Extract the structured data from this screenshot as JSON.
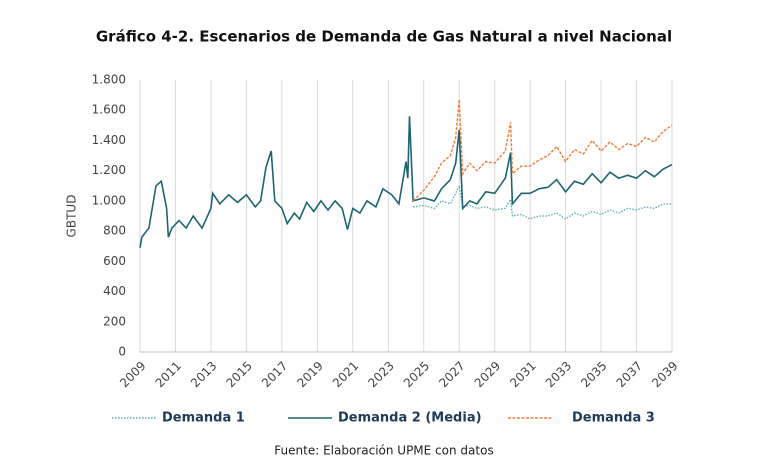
{
  "chart_data": {
    "type": "line",
    "title": "Gráfico 4-2. Escenarios de Demanda de Gas Natural a nivel Nacional",
    "y_label": "GBTUD",
    "source": "Fuente: Elaboración UPME con datos",
    "x": [
      2009.0,
      2009.1,
      2009.5,
      2009.9,
      2010.2,
      2010.5,
      2010.6,
      2010.8,
      2011.2,
      2011.6,
      2012.0,
      2012.5,
      2013.0,
      2013.1,
      2013.5,
      2014.0,
      2014.5,
      2015.0,
      2015.5,
      2015.8,
      2016.1,
      2016.4,
      2016.6,
      2017.0,
      2017.3,
      2017.7,
      2018.0,
      2018.4,
      2018.8,
      2019.2,
      2019.6,
      2020.0,
      2020.4,
      2020.7,
      2021.0,
      2021.4,
      2021.8,
      2022.3,
      2022.7,
      2023.2,
      2023.6,
      2024.0,
      2024.1,
      2024.2,
      2024.4,
      2025.0,
      2025.6,
      2026.0,
      2026.5,
      2026.8,
      2027.0,
      2027.2,
      2027.6,
      2028.0,
      2028.5,
      2029.0,
      2029.6,
      2029.9,
      2030.0,
      2030.5,
      2031.0,
      2031.5,
      2032.0,
      2032.5,
      2033.0,
      2033.5,
      2034.0,
      2034.5,
      2035.0,
      2035.5,
      2036.0,
      2036.5,
      2037.0,
      2037.5,
      2038.0,
      2038.5,
      2039.0
    ],
    "series": [
      {
        "name": "Demanda 1",
        "color": "#5fb0b0",
        "dash": "dotted",
        "values": [
          null,
          null,
          null,
          null,
          null,
          null,
          null,
          null,
          null,
          null,
          null,
          null,
          null,
          null,
          null,
          null,
          null,
          null,
          null,
          null,
          null,
          null,
          null,
          null,
          null,
          null,
          null,
          null,
          null,
          null,
          null,
          null,
          null,
          null,
          null,
          null,
          null,
          null,
          null,
          null,
          null,
          null,
          null,
          null,
          960,
          970,
          950,
          1000,
          980,
          1050,
          1100,
          960,
          970,
          950,
          960,
          940,
          950,
          1010,
          900,
          910,
          880,
          900,
          900,
          920,
          880,
          920,
          900,
          930,
          910,
          940,
          920,
          950,
          940,
          960,
          950,
          980,
          980
        ]
      },
      {
        "name": "Demanda 2 (Media)",
        "color": "#1f6472",
        "dash": "solid",
        "values": [
          690,
          760,
          820,
          1100,
          1130,
          950,
          760,
          820,
          870,
          820,
          900,
          820,
          950,
          1050,
          980,
          1040,
          990,
          1040,
          960,
          1000,
          1220,
          1330,
          1000,
          950,
          850,
          920,
          880,
          990,
          930,
          1000,
          940,
          1000,
          950,
          810,
          950,
          920,
          1000,
          960,
          1080,
          1040,
          980,
          1260,
          1150,
          1560,
          1000,
          1020,
          1000,
          1080,
          1140,
          1250,
          1470,
          950,
          1000,
          980,
          1060,
          1050,
          1150,
          1320,
          980,
          1050,
          1050,
          1080,
          1090,
          1140,
          1060,
          1130,
          1110,
          1180,
          1120,
          1190,
          1150,
          1170,
          1150,
          1200,
          1160,
          1210,
          1240
        ]
      },
      {
        "name": "Demanda 3",
        "color": "#f07c3c",
        "dash": "dashed",
        "values": [
          null,
          null,
          null,
          null,
          null,
          null,
          null,
          null,
          null,
          null,
          null,
          null,
          null,
          null,
          null,
          null,
          null,
          null,
          null,
          null,
          null,
          null,
          null,
          null,
          null,
          null,
          null,
          null,
          null,
          null,
          null,
          null,
          null,
          null,
          null,
          null,
          null,
          null,
          null,
          null,
          null,
          null,
          null,
          null,
          1000,
          1070,
          1160,
          1250,
          1300,
          1420,
          1670,
          1180,
          1250,
          1200,
          1260,
          1250,
          1330,
          1520,
          1180,
          1230,
          1230,
          1270,
          1300,
          1360,
          1260,
          1340,
          1310,
          1400,
          1330,
          1390,
          1340,
          1380,
          1360,
          1420,
          1390,
          1460,
          1500
        ]
      }
    ],
    "xlim": [
      2009,
      2039
    ],
    "xticks": [
      2009,
      2011,
      2013,
      2015,
      2017,
      2019,
      2021,
      2023,
      2025,
      2027,
      2029,
      2031,
      2033,
      2035,
      2037,
      2039
    ],
    "ylim": [
      0,
      1800
    ],
    "yticks": [
      0,
      200,
      400,
      600,
      800,
      {
        "value": 1000,
        "label": "1.000"
      },
      {
        "value": 1200,
        "label": "1.200"
      },
      {
        "value": 1400,
        "label": "1.400"
      },
      {
        "value": 1600,
        "label": "1.600"
      },
      {
        "value": 1800,
        "label": "1.800"
      }
    ],
    "grid": true,
    "legend": "bottom"
  }
}
